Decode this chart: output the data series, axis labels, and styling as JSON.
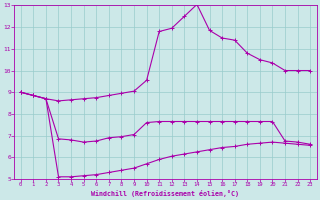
{
  "background_color": "#cce8e8",
  "grid_color": "#99cccc",
  "line_color": "#aa00aa",
  "xlim": [
    -0.5,
    23.5
  ],
  "ylim": [
    5,
    13
  ],
  "xticks": [
    0,
    1,
    2,
    3,
    4,
    5,
    6,
    7,
    8,
    9,
    10,
    11,
    12,
    13,
    14,
    15,
    16,
    17,
    18,
    19,
    20,
    21,
    22,
    23
  ],
  "yticks": [
    5,
    6,
    7,
    8,
    9,
    10,
    11,
    12,
    13
  ],
  "xlabel": "Windchill (Refroidissement éolien,°C)",
  "line1_x": [
    0,
    1,
    2,
    3,
    4,
    5,
    6,
    7,
    8,
    9,
    10,
    11,
    12,
    13,
    14,
    15,
    16,
    17,
    18,
    19,
    20,
    21,
    22,
    23
  ],
  "line1_y": [
    9.0,
    8.85,
    8.7,
    6.85,
    6.8,
    6.7,
    6.75,
    6.9,
    6.95,
    7.05,
    7.6,
    7.65,
    7.65,
    7.65,
    7.65,
    7.65,
    7.65,
    7.65,
    7.65,
    7.65,
    7.65,
    6.75,
    6.7,
    6.6
  ],
  "line2_x": [
    0,
    1,
    2,
    3,
    4,
    5,
    6,
    7,
    8,
    9,
    10,
    11,
    12,
    13,
    14,
    15,
    16,
    17,
    18,
    19,
    20,
    21,
    22,
    23
  ],
  "line2_y": [
    9.0,
    8.85,
    8.7,
    5.1,
    5.1,
    5.15,
    5.2,
    5.3,
    5.4,
    5.5,
    5.7,
    5.9,
    6.05,
    6.15,
    6.25,
    6.35,
    6.45,
    6.5,
    6.6,
    6.65,
    6.7,
    6.65,
    6.6,
    6.55
  ],
  "line3_x": [
    0,
    1,
    2,
    3,
    4,
    5,
    6,
    7,
    8,
    9,
    10,
    11,
    12,
    13,
    14,
    15,
    16,
    17,
    18,
    19,
    20,
    21,
    22,
    23
  ],
  "line3_y": [
    9.0,
    8.85,
    8.7,
    8.6,
    8.65,
    8.7,
    8.75,
    8.85,
    8.95,
    9.05,
    9.55,
    11.8,
    11.95,
    12.5,
    13.05,
    11.85,
    11.5,
    11.4,
    10.8,
    10.5,
    10.35,
    10.0,
    10.0,
    10.0
  ]
}
